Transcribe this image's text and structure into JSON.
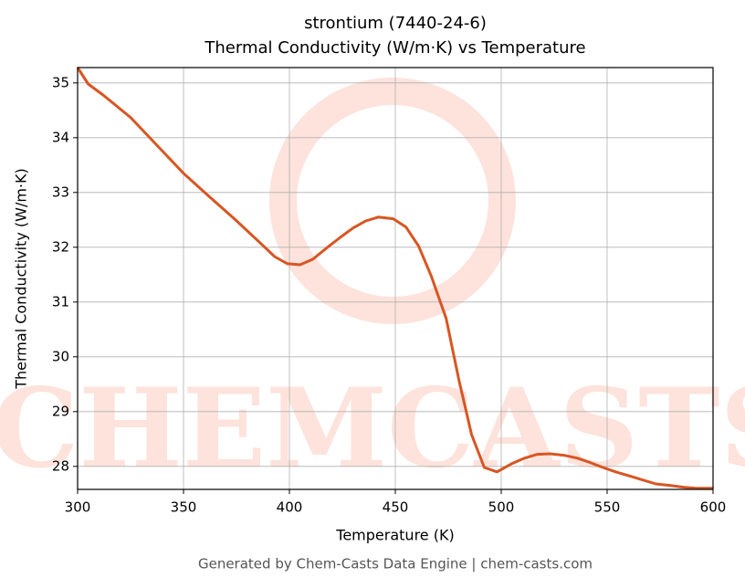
{
  "chart_data": {
    "type": "line",
    "title": "strontium (7440-24-6)",
    "subtitle": "Thermal Conductivity (W/m·K) vs Temperature",
    "x_label": "Temperature (K)",
    "y_label": "Thermal Conductivity (W/m·K)",
    "footer": "Generated by Chem-Casts Data Engine | chem-casts.com",
    "watermark": "CHEMCASTS",
    "grid": true,
    "x": [
      300,
      305,
      312,
      325,
      337,
      350,
      362,
      374,
      387,
      393,
      399,
      405,
      411,
      418,
      424,
      430,
      436,
      442,
      449,
      455,
      461,
      467,
      474,
      480,
      486,
      492,
      498,
      505,
      511,
      517,
      523,
      530,
      536,
      542,
      548,
      554,
      561,
      567,
      573,
      580,
      586,
      592,
      600
    ],
    "series": [
      {
        "name": "Thermal Conductivity",
        "color": "#d95522",
        "values": [
          35.28,
          34.98,
          34.78,
          34.37,
          33.88,
          33.35,
          32.93,
          32.52,
          32.05,
          31.83,
          31.7,
          31.68,
          31.78,
          32.0,
          32.18,
          32.35,
          32.48,
          32.55,
          32.52,
          32.37,
          32.02,
          31.47,
          30.7,
          29.58,
          28.58,
          27.98,
          27.9,
          28.05,
          28.15,
          28.22,
          28.23,
          28.2,
          28.15,
          28.07,
          27.98,
          27.9,
          27.82,
          27.75,
          27.68,
          27.65,
          27.62,
          27.6,
          27.6
        ]
      }
    ],
    "xlim": [
      300,
      600
    ],
    "xticks": [
      300,
      350,
      400,
      450,
      500,
      550,
      600
    ],
    "ylim": [
      27.58,
      35.28
    ],
    "yticks": [
      28,
      29,
      30,
      31,
      32,
      33,
      34,
      35
    ]
  }
}
